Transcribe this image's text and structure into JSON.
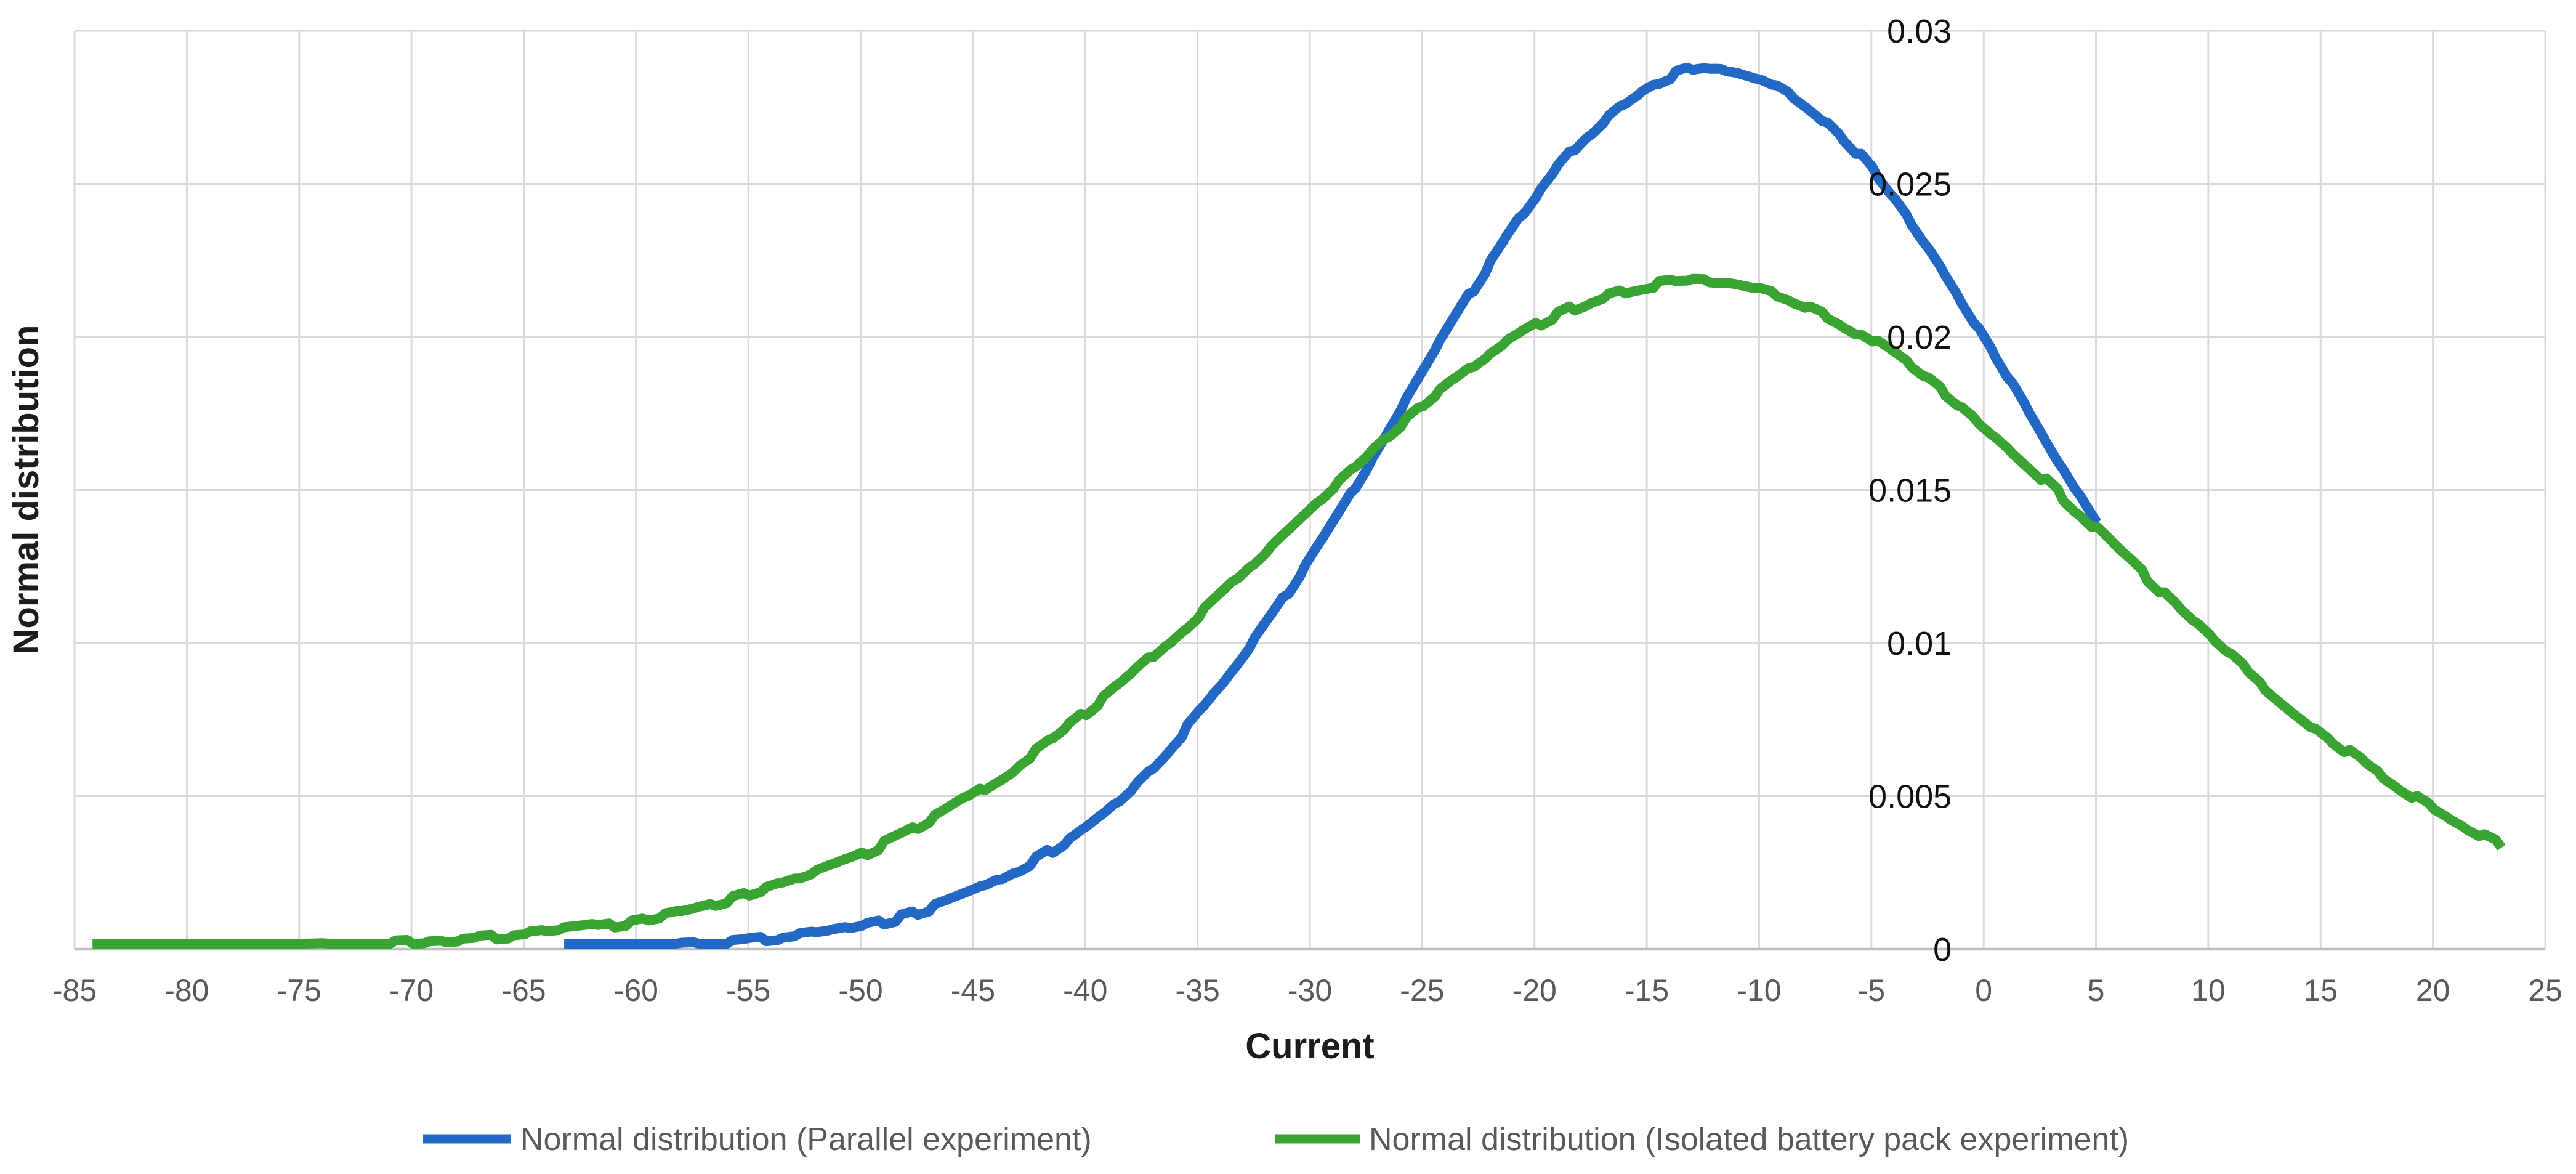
{
  "page": {
    "background": "#ffffff"
  },
  "colors": {
    "gridline": "#d9d9d9",
    "axis_line": "#bfbfbf",
    "x_tick_label": "#595959",
    "y_tick_label": "#111111",
    "axis_title": "#1c1c1c",
    "legend_text": "#595959",
    "series_blue": "#2368c4",
    "series_green": "#39a432"
  },
  "chart_data": {
    "type": "line",
    "title": "",
    "xlabel": "Current",
    "ylabel": "Normal distribution",
    "xlim": [
      -85,
      25
    ],
    "ylim": [
      0,
      0.03
    ],
    "grid": "both",
    "legend_position": "bottom",
    "x_ticks": [
      -85,
      -80,
      -75,
      -70,
      -65,
      -60,
      -55,
      -50,
      -45,
      -40,
      -35,
      -30,
      -25,
      -20,
      -15,
      -10,
      -5,
      0,
      5,
      10,
      15,
      20,
      25
    ],
    "x_tick_labels": [
      "-85",
      "-80",
      "-75",
      "-70",
      "-65",
      "-60",
      "-55",
      "-50",
      "-45",
      "-40",
      "-35",
      "-30",
      "-25",
      "-20",
      "-15",
      "-10",
      "-5",
      "0",
      "5",
      "10",
      "15",
      "20",
      "25"
    ],
    "y_ticks": [
      0,
      0.005,
      0.01,
      0.015,
      0.02,
      0.025,
      0.03
    ],
    "y_tick_labels": [
      "0",
      "0.005",
      "0.01",
      "0.015",
      "0.02",
      "0.025",
      "0.03"
    ],
    "series": [
      {
        "name": "Normal distribution (Parallel experiment)",
        "color": "#2368c4",
        "style": "noisy-thick-line",
        "gaussian": {
          "amplitude": 0.0288,
          "mean": -12,
          "sigma": 14.1
        },
        "x_range": [
          -63.2,
          5.2
        ],
        "points": [
          [
            -63,
            4.15e-05
          ],
          [
            -59,
            0.0001113
          ],
          [
            -55,
            0.0002754
          ],
          [
            -51,
            0.000629
          ],
          [
            -47,
            0.001323
          ],
          [
            -43,
            0.002567
          ],
          [
            -39,
            0.004602
          ],
          [
            -35,
            0.007614
          ],
          [
            -31,
            0.011616
          ],
          [
            -27,
            0.016354
          ],
          [
            -23,
            0.021244
          ],
          [
            -19,
            0.025461
          ],
          [
            -15,
            0.028155
          ],
          [
            -12,
            0.0288
          ],
          [
            -9,
            0.028155
          ],
          [
            -5,
            0.025461
          ],
          [
            -1,
            0.021244
          ],
          [
            3,
            0.016354
          ],
          [
            5,
            0.013924
          ]
        ]
      },
      {
        "name": "Normal distribution (Isolated battery pack experiment)",
        "color": "#39a432",
        "style": "noisy-thick-line",
        "gaussian": {
          "amplitude": 0.0218,
          "mean": -13,
          "sigma": 18.7
        },
        "x_range": [
          -84.2,
          23.1
        ],
        "points": [
          [
            -84,
            1.61e-05
          ],
          [
            -79,
            4.3e-05
          ],
          [
            -74,
            0.0001066
          ],
          [
            -69,
            0.0002461
          ],
          [
            -64,
            0.0005286
          ],
          [
            -59,
            0.0010581
          ],
          [
            -54,
            0.0019715
          ],
          [
            -49,
            0.0034156
          ],
          [
            -44,
            0.0055169
          ],
          [
            -39,
            0.0082927
          ],
          [
            -34,
            0.0116035
          ],
          [
            -29,
            0.0151179
          ],
          [
            -24,
            0.0183366
          ],
          [
            -19,
            0.0207063
          ],
          [
            -13,
            0.0218
          ],
          [
            -8,
            0.0210346
          ],
          [
            -3,
            0.0188955
          ],
          [
            2,
            0.0158029
          ],
          [
            7,
            0.0123045
          ],
          [
            12,
            0.0089192
          ],
          [
            17,
            0.0060199
          ],
          [
            23,
            0.0034156
          ]
        ]
      }
    ]
  }
}
